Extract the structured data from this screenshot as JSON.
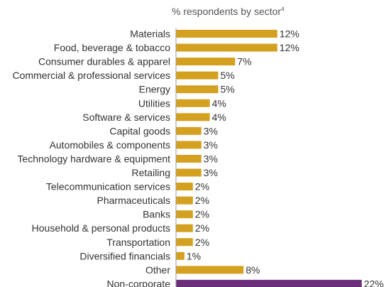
{
  "chart_data": {
    "type": "bar",
    "orientation": "horizontal",
    "title": "% respondents by sector",
    "title_superscript": "4",
    "value_suffix": "%",
    "categories": [
      "Materials",
      "Food, beverage & tobacco",
      "Consumer durables & apparel",
      "Commercial & professional services",
      "Energy",
      "Utilities",
      "Software & services",
      "Capital goods",
      "Automobiles & components",
      "Technology hardware & equipment",
      "Retailing",
      "Telecommunication services",
      "Pharmaceuticals",
      "Banks",
      "Household & personal products",
      "Transportation",
      "Diversified financials",
      "Other",
      "Non-corporate"
    ],
    "values": [
      12,
      12,
      7,
      5,
      5,
      4,
      4,
      3,
      3,
      3,
      3,
      2,
      2,
      2,
      2,
      2,
      1,
      8,
      22
    ],
    "bar_colors": {
      "default": "#D4A020",
      "highlight": "#6B2F7A"
    },
    "highlight_categories": [
      "Non-corporate"
    ],
    "grid": false,
    "legend": "none"
  }
}
